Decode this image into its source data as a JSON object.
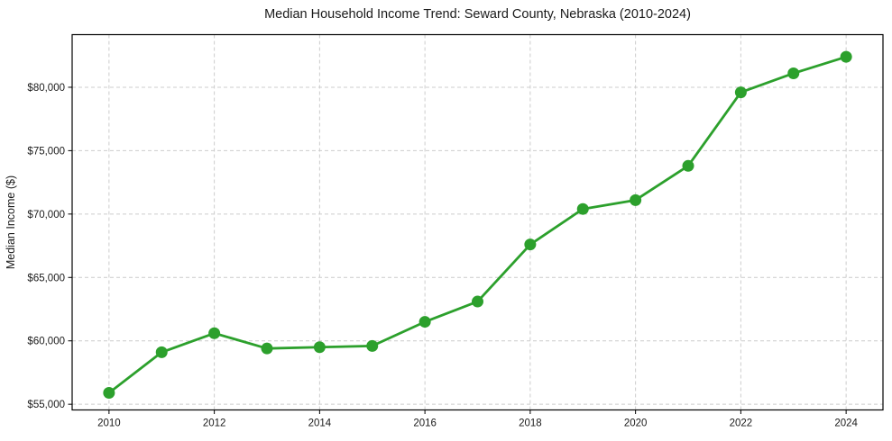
{
  "chart_data": {
    "type": "line",
    "title": "Median Household Income Trend: Seward County, Nebraska (2010-2024)",
    "xlabel": "",
    "ylabel": "Median Income ($)",
    "x": [
      2010,
      2011,
      2012,
      2013,
      2014,
      2015,
      2016,
      2017,
      2018,
      2019,
      2020,
      2021,
      2022,
      2023,
      2024
    ],
    "series": [
      {
        "name": "Median Household Income",
        "values": [
          55900,
          59100,
          60600,
          59400,
          59500,
          59600,
          61500,
          63100,
          67600,
          70400,
          71100,
          73800,
          79600,
          81100,
          82400
        ]
      }
    ],
    "xticks": [
      2010,
      2012,
      2014,
      2016,
      2018,
      2020,
      2022,
      2024
    ],
    "ytick_values": [
      55000,
      60000,
      65000,
      70000,
      75000,
      80000
    ],
    "ytick_labels": [
      "$55,000",
      "$60,000",
      "$65,000",
      "$70,000",
      "$75,000",
      "$80,000"
    ],
    "xlim": [
      2009.3,
      2024.7
    ],
    "ylim": [
      54550,
      84150
    ],
    "grid": "dashed",
    "legend": "none",
    "colors": {
      "line": "#2ca02c",
      "marker": "#2ca02c",
      "grid": "#cccccc",
      "frame": "#000000",
      "background": "#ffffff",
      "text": "#1a1a1a"
    }
  }
}
